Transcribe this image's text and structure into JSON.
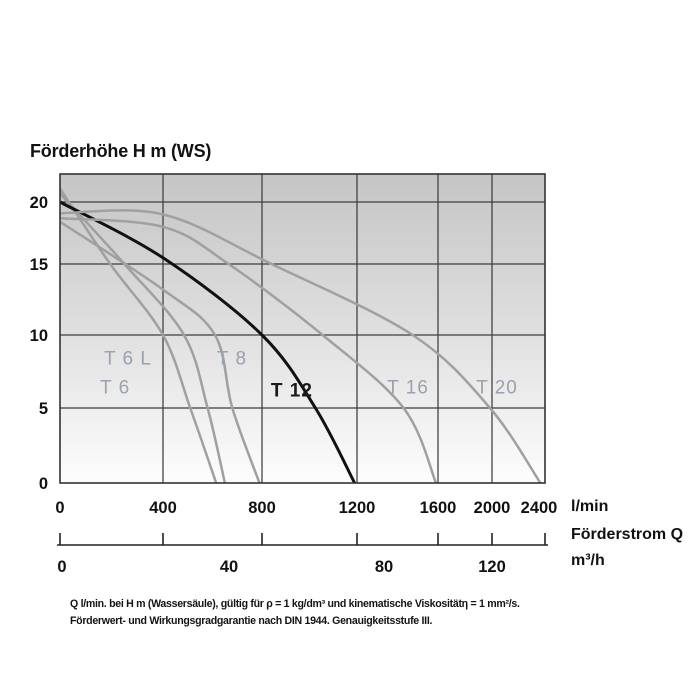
{
  "page": {
    "background": "#ffffff"
  },
  "chart_data": {
    "type": "line",
    "title": "Förderhöhe H m (WS)",
    "x_label": "Förderstrom Q",
    "y_ticks": [
      20,
      15,
      10,
      5,
      0
    ],
    "x_axis_lmin": {
      "ticks": [
        0,
        400,
        800,
        1200,
        1600,
        2000,
        2400
      ],
      "unit": "l/min"
    },
    "x_axis_m3h": {
      "ticks": [
        0,
        40,
        80,
        120
      ],
      "unit": "m³/h"
    },
    "grid": true,
    "ylim": [
      0,
      22.3
    ],
    "xlim_lmin": [
      0,
      2400
    ],
    "series": [
      {
        "name": "T 6 L",
        "color": "#a0a0a0",
        "label_color": "#9aa2ae",
        "label_bold": false,
        "label_at": [
          264,
          8.4
        ],
        "points": [
          [
            0,
            21.1
          ],
          [
            195,
            15
          ],
          [
            400,
            10
          ],
          [
            510,
            5
          ],
          [
            615,
            0
          ]
        ]
      },
      {
        "name": "T 6",
        "color": "#a0a0a0",
        "label_color": "#9aa2ae",
        "label_bold": false,
        "label_at": [
          214,
          6.4
        ],
        "points": [
          [
            0,
            20.7
          ],
          [
            250,
            15
          ],
          [
            485,
            10
          ],
          [
            580,
            5
          ],
          [
            650,
            0
          ]
        ]
      },
      {
        "name": "T 8",
        "color": "#a0a0a0",
        "label_color": "#9aa2ae",
        "label_bold": false,
        "label_at": [
          679,
          8.4
        ],
        "points": [
          [
            0,
            18.4
          ],
          [
            400,
            13.2
          ],
          [
            610,
            10
          ],
          [
            680,
            5
          ],
          [
            790,
            0
          ]
        ]
      },
      {
        "name": "T 12",
        "color": "#111111",
        "label_color": "#1a1a1a",
        "label_bold": true,
        "label_at": [
          926,
          6.2
        ],
        "points": [
          [
            0,
            20.0
          ],
          [
            400,
            15.5
          ],
          [
            800,
            10
          ],
          [
            1025,
            5
          ],
          [
            1190,
            0
          ]
        ]
      },
      {
        "name": "T 16",
        "color": "#a0a0a0",
        "label_color": "#9aa2ae",
        "label_bold": false,
        "label_at": [
          1452,
          6.4
        ],
        "points": [
          [
            0,
            18.7
          ],
          [
            400,
            18.0
          ],
          [
            665,
            15
          ],
          [
            1055,
            10
          ],
          [
            1430,
            5
          ],
          [
            1590,
            0
          ]
        ]
      },
      {
        "name": "T 20",
        "color": "#a0a0a0",
        "label_color": "#9aa2ae",
        "label_bold": false,
        "label_at": [
          2038,
          6.4
        ],
        "points": [
          [
            0,
            19.1
          ],
          [
            400,
            19.0
          ],
          [
            840,
            15
          ],
          [
            1475,
            10
          ],
          [
            1985,
            5
          ],
          [
            2365,
            0
          ]
        ]
      }
    ],
    "footnote": [
      "Q l/min. bei H m (Wassersäule), gültig für ρ = 1 kg/dm³ und kinematische Viskositätη = 1 mm²/s.",
      "Förderwert- und Wirkungsgradgarantie nach DIN 1944. Genauigkeitsstufe III."
    ],
    "colors": {
      "grid": "#3d3d3d",
      "border": "#333333",
      "plot_bg_top": "#c5c5c5",
      "plot_bg_mid": "#dcdcdc",
      "plot_bg_bottom": "#fdfdfd",
      "axis_text": "#111111"
    }
  }
}
